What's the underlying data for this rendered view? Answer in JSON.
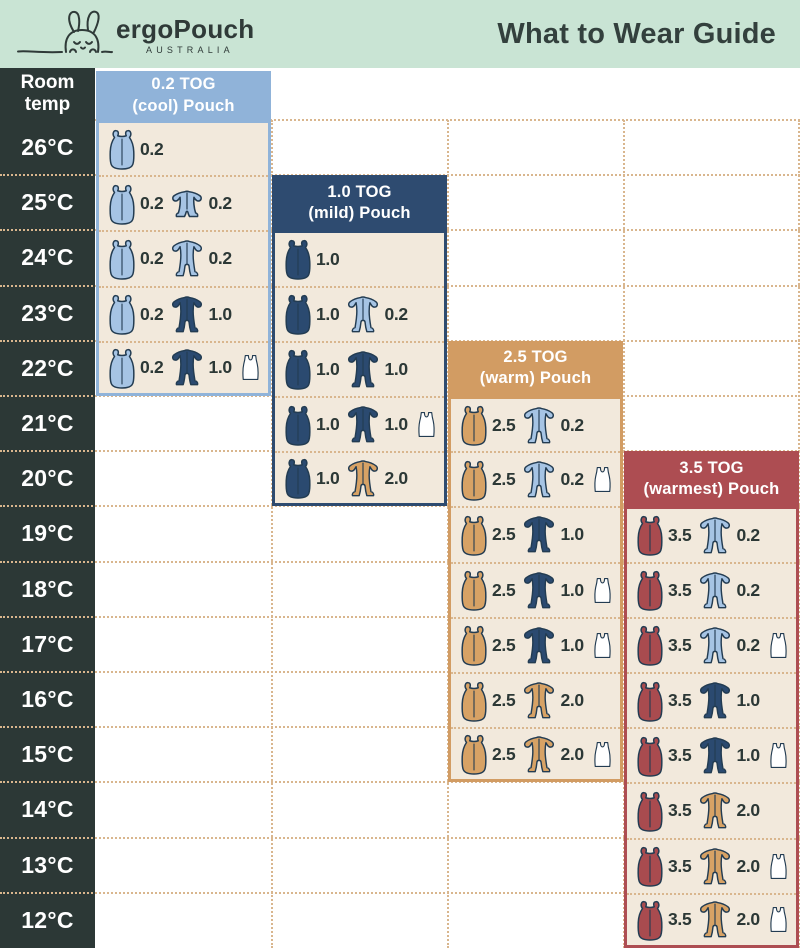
{
  "header": {
    "brand": "ergoPouch",
    "brand_sub": "AUSTRALIA",
    "title": "What to Wear Guide"
  },
  "colors": {
    "mint": "#c9e4d4",
    "charcoal": "#2c3836",
    "cream": "#f2e9dc",
    "dots": "#d9b68e",
    "outline": "#233c52",
    "text_dark": "#2f3a38",
    "panel": {
      "lightblue": "#90b3d9",
      "navy": "#2e4b70",
      "tan": "#d29c63",
      "maroon": "#ad4d52"
    },
    "fill": {
      "lightblue": "#a6c4e4",
      "navy": "#2b4a70",
      "tan": "#d7a265",
      "maroon": "#a94b4f",
      "white": "#ffffff"
    }
  },
  "icon_legend": {
    "pouch": "sleep-pouch-icon",
    "suit": "long-sleeve-sleepsuit-icon",
    "romper": "short-sleeve-romper-icon",
    "singlet": "singlet-icon"
  },
  "chart_data": {
    "type": "table",
    "title": "What to Wear Guide",
    "row_axis_label": "Room temp",
    "temp_labels": [
      "26°C",
      "25°C",
      "24°C",
      "23°C",
      "22°C",
      "21°C",
      "20°C",
      "19°C",
      "18°C",
      "17°C",
      "16°C",
      "15°C",
      "14°C",
      "13°C",
      "12°C"
    ],
    "panels": [
      {
        "tog": "0.2",
        "title": [
          "0.2 TOG",
          "(cool) Pouch"
        ],
        "color": "lightblue",
        "rows": [
          {
            "temp": "26°C",
            "items": [
              {
                "icon": "pouch",
                "color": "lightblue",
                "tog": "0.2"
              }
            ]
          },
          {
            "temp": "25°C",
            "items": [
              {
                "icon": "pouch",
                "color": "lightblue",
                "tog": "0.2"
              },
              {
                "icon": "romper",
                "color": "lightblue",
                "tog": "0.2"
              }
            ]
          },
          {
            "temp": "24°C",
            "items": [
              {
                "icon": "pouch",
                "color": "lightblue",
                "tog": "0.2"
              },
              {
                "icon": "suit",
                "color": "lightblue",
                "tog": "0.2"
              }
            ]
          },
          {
            "temp": "23°C",
            "items": [
              {
                "icon": "pouch",
                "color": "lightblue",
                "tog": "0.2"
              },
              {
                "icon": "suit",
                "color": "navy",
                "tog": "1.0"
              }
            ]
          },
          {
            "temp": "22°C",
            "items": [
              {
                "icon": "pouch",
                "color": "lightblue",
                "tog": "0.2"
              },
              {
                "icon": "suit",
                "color": "navy",
                "tog": "1.0"
              },
              {
                "icon": "singlet",
                "color": "white"
              }
            ]
          }
        ]
      },
      {
        "tog": "1.0",
        "title": [
          "1.0 TOG",
          "(mild) Pouch"
        ],
        "color": "navy",
        "rows": [
          {
            "temp": "24°C",
            "items": [
              {
                "icon": "pouch",
                "color": "navy",
                "tog": "1.0"
              }
            ]
          },
          {
            "temp": "23°C",
            "items": [
              {
                "icon": "pouch",
                "color": "navy",
                "tog": "1.0"
              },
              {
                "icon": "suit",
                "color": "lightblue",
                "tog": "0.2"
              }
            ]
          },
          {
            "temp": "22°C",
            "items": [
              {
                "icon": "pouch",
                "color": "navy",
                "tog": "1.0"
              },
              {
                "icon": "suit",
                "color": "navy",
                "tog": "1.0"
              }
            ]
          },
          {
            "temp": "21°C",
            "items": [
              {
                "icon": "pouch",
                "color": "navy",
                "tog": "1.0"
              },
              {
                "icon": "suit",
                "color": "navy",
                "tog": "1.0"
              },
              {
                "icon": "singlet",
                "color": "white"
              }
            ]
          },
          {
            "temp": "20°C",
            "items": [
              {
                "icon": "pouch",
                "color": "navy",
                "tog": "1.0"
              },
              {
                "icon": "suit",
                "color": "tan",
                "tog": "2.0"
              }
            ]
          }
        ]
      },
      {
        "tog": "2.5",
        "title": [
          "2.5 TOG",
          "(warm) Pouch"
        ],
        "color": "tan",
        "rows": [
          {
            "temp": "21°C",
            "items": [
              {
                "icon": "pouch",
                "color": "tan",
                "tog": "2.5"
              },
              {
                "icon": "suit",
                "color": "lightblue",
                "tog": "0.2"
              }
            ]
          },
          {
            "temp": "20°C",
            "items": [
              {
                "icon": "pouch",
                "color": "tan",
                "tog": "2.5"
              },
              {
                "icon": "suit",
                "color": "lightblue",
                "tog": "0.2"
              },
              {
                "icon": "singlet",
                "color": "white"
              }
            ]
          },
          {
            "temp": "19°C",
            "items": [
              {
                "icon": "pouch",
                "color": "tan",
                "tog": "2.5"
              },
              {
                "icon": "suit",
                "color": "navy",
                "tog": "1.0"
              }
            ]
          },
          {
            "temp": "18°C",
            "items": [
              {
                "icon": "pouch",
                "color": "tan",
                "tog": "2.5"
              },
              {
                "icon": "suit",
                "color": "navy",
                "tog": "1.0"
              },
              {
                "icon": "singlet",
                "color": "white"
              }
            ]
          },
          {
            "temp": "17°C",
            "items": [
              {
                "icon": "pouch",
                "color": "tan",
                "tog": "2.5"
              },
              {
                "icon": "suit",
                "color": "navy",
                "tog": "1.0"
              },
              {
                "icon": "singlet",
                "color": "white"
              }
            ]
          },
          {
            "temp": "16°C",
            "items": [
              {
                "icon": "pouch",
                "color": "tan",
                "tog": "2.5"
              },
              {
                "icon": "suit",
                "color": "tan",
                "tog": "2.0"
              }
            ]
          },
          {
            "temp": "15°C",
            "items": [
              {
                "icon": "pouch",
                "color": "tan",
                "tog": "2.5"
              },
              {
                "icon": "suit",
                "color": "tan",
                "tog": "2.0"
              },
              {
                "icon": "singlet",
                "color": "white"
              }
            ]
          }
        ]
      },
      {
        "tog": "3.5",
        "title": [
          "3.5 TOG",
          "(warmest) Pouch"
        ],
        "color": "maroon",
        "rows": [
          {
            "temp": "19°C",
            "items": [
              {
                "icon": "pouch",
                "color": "maroon",
                "tog": "3.5"
              },
              {
                "icon": "suit",
                "color": "lightblue",
                "tog": "0.2"
              }
            ]
          },
          {
            "temp": "18°C",
            "items": [
              {
                "icon": "pouch",
                "color": "maroon",
                "tog": "3.5"
              },
              {
                "icon": "suit",
                "color": "lightblue",
                "tog": "0.2"
              }
            ]
          },
          {
            "temp": "17°C",
            "items": [
              {
                "icon": "pouch",
                "color": "maroon",
                "tog": "3.5"
              },
              {
                "icon": "suit",
                "color": "lightblue",
                "tog": "0.2"
              },
              {
                "icon": "singlet",
                "color": "white"
              }
            ]
          },
          {
            "temp": "16°C",
            "items": [
              {
                "icon": "pouch",
                "color": "maroon",
                "tog": "3.5"
              },
              {
                "icon": "suit",
                "color": "navy",
                "tog": "1.0"
              }
            ]
          },
          {
            "temp": "15°C",
            "items": [
              {
                "icon": "pouch",
                "color": "maroon",
                "tog": "3.5"
              },
              {
                "icon": "suit",
                "color": "navy",
                "tog": "1.0"
              },
              {
                "icon": "singlet",
                "color": "white"
              }
            ]
          },
          {
            "temp": "14°C",
            "items": [
              {
                "icon": "pouch",
                "color": "maroon",
                "tog": "3.5"
              },
              {
                "icon": "suit",
                "color": "tan",
                "tog": "2.0"
              }
            ]
          },
          {
            "temp": "13°C",
            "items": [
              {
                "icon": "pouch",
                "color": "maroon",
                "tog": "3.5"
              },
              {
                "icon": "suit",
                "color": "tan",
                "tog": "2.0"
              },
              {
                "icon": "singlet",
                "color": "white"
              }
            ]
          },
          {
            "temp": "12°C",
            "items": [
              {
                "icon": "pouch",
                "color": "maroon",
                "tog": "3.5"
              },
              {
                "icon": "suit",
                "color": "tan",
                "tog": "2.0"
              },
              {
                "icon": "singlet",
                "color": "white"
              }
            ]
          }
        ]
      }
    ]
  }
}
